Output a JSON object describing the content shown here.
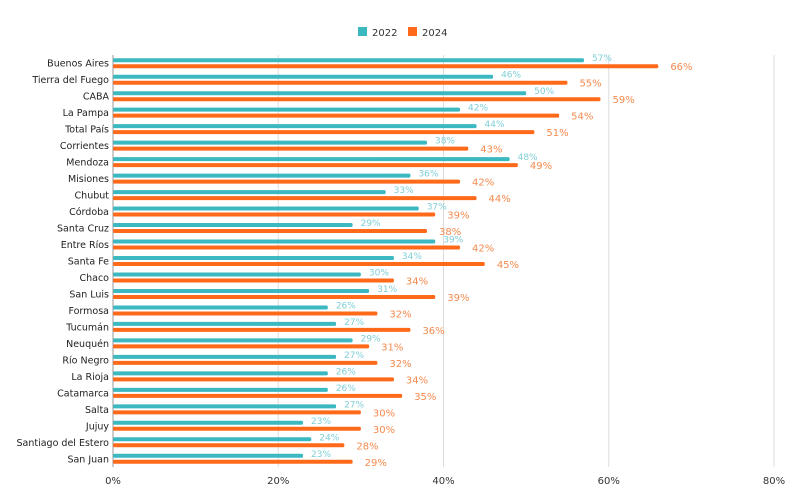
{
  "chart_data": {
    "type": "bar",
    "orientation": "horizontal",
    "title": "",
    "xlabel": "",
    "ylabel": "",
    "xlim": [
      0,
      80
    ],
    "x_ticks": [
      "0%",
      "20%",
      "40%",
      "60%",
      "80%"
    ],
    "grid": true,
    "legend_position": "top-center",
    "categories": [
      "Buenos Aires",
      "Tierra del Fuego",
      "CABA",
      "La Pampa",
      "Total País",
      "Corrientes",
      "Mendoza",
      "Misiones",
      "Chubut",
      "Córdoba",
      "Santa Cruz",
      "Entre Ríos",
      "Santa Fe",
      "Chaco",
      "San Luis",
      "Formosa",
      "Tucumán",
      "Neuquén",
      "Río Negro",
      "La Rioja",
      "Catamarca",
      "Salta",
      "Jujuy",
      "Santiago del Estero",
      "San Juan"
    ],
    "series": [
      {
        "name": "2022",
        "color": "#3bb8c0",
        "label_color": "#7fcfd6",
        "values": [
          57,
          46,
          50,
          42,
          44,
          38,
          48,
          36,
          33,
          37,
          29,
          39,
          34,
          30,
          31,
          26,
          27,
          29,
          27,
          26,
          26,
          27,
          23,
          24,
          23
        ]
      },
      {
        "name": "2024",
        "color": "#ff6a1a",
        "label_color": "#f48a4e",
        "values": [
          66,
          55,
          59,
          54,
          51,
          43,
          49,
          42,
          44,
          39,
          38,
          42,
          45,
          34,
          39,
          32,
          36,
          31,
          32,
          34,
          35,
          30,
          30,
          28,
          29
        ]
      }
    ]
  }
}
